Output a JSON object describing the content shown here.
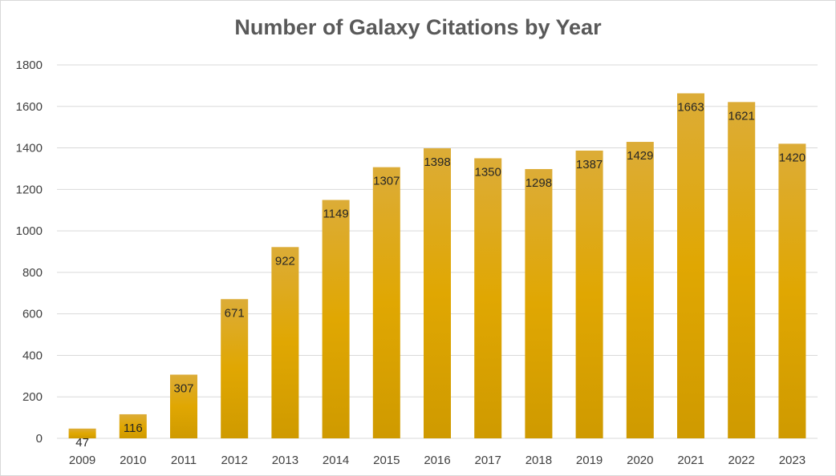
{
  "colors": {
    "bar_top": "#dcac37",
    "bar_mid": "#e0a702",
    "bar_bottom": "#cf9a00",
    "grid": "#d9d9d9",
    "tick_text": "#404040",
    "label_text": "#262626",
    "title_text": "#595959"
  },
  "chart_data": {
    "type": "bar",
    "title": "Number of Galaxy Citations by Year",
    "xlabel": "",
    "ylabel": "",
    "categories": [
      "2009",
      "2010",
      "2011",
      "2012",
      "2013",
      "2014",
      "2015",
      "2016",
      "2017",
      "2018",
      "2019",
      "2020",
      "2021",
      "2022",
      "2023"
    ],
    "values": [
      47,
      116,
      307,
      671,
      922,
      1149,
      1307,
      1398,
      1350,
      1298,
      1387,
      1429,
      1663,
      1621,
      1420
    ],
    "ylim": [
      0,
      1800
    ],
    "yticks": [
      0,
      200,
      400,
      600,
      800,
      1000,
      1200,
      1400,
      1600,
      1800
    ],
    "grid": true,
    "legend": "none",
    "data_labels": true
  }
}
